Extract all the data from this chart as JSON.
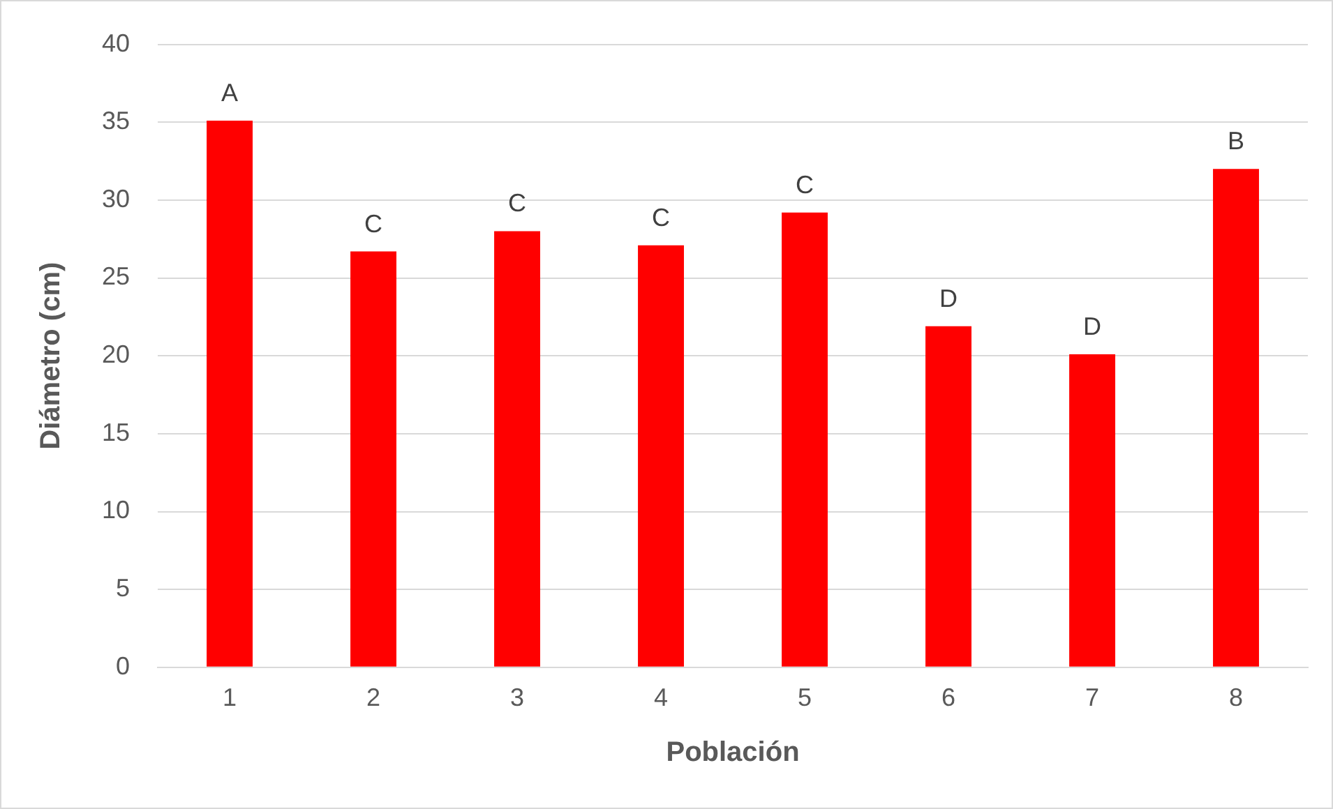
{
  "chart_data": {
    "type": "bar",
    "xlabel": "Población",
    "ylabel": "Diámetro (cm)",
    "categories": [
      "1",
      "2",
      "3",
      "4",
      "5",
      "6",
      "7",
      "8"
    ],
    "values": [
      35.1,
      26.7,
      28.0,
      27.1,
      29.2,
      21.9,
      20.1,
      32.0
    ],
    "color": "#ff0000",
    "ylim": [
      0,
      40
    ],
    "yticks": [
      0,
      5,
      10,
      15,
      20,
      25,
      30,
      35,
      40
    ],
    "grid": "y",
    "annotations": [
      {
        "text": "A",
        "x": "1",
        "y": 35.1
      },
      {
        "text": "C",
        "x": "2",
        "y": 26.7
      },
      {
        "text": "C",
        "x": "3",
        "y": 28.0
      },
      {
        "text": "C",
        "x": "4",
        "y": 27.1
      },
      {
        "text": "C",
        "x": "5",
        "y": 29.2
      },
      {
        "text": "D",
        "x": "6",
        "y": 21.9
      },
      {
        "text": "D",
        "x": "7",
        "y": 20.1
      },
      {
        "text": "B",
        "x": "8",
        "y": 32.0
      }
    ]
  }
}
